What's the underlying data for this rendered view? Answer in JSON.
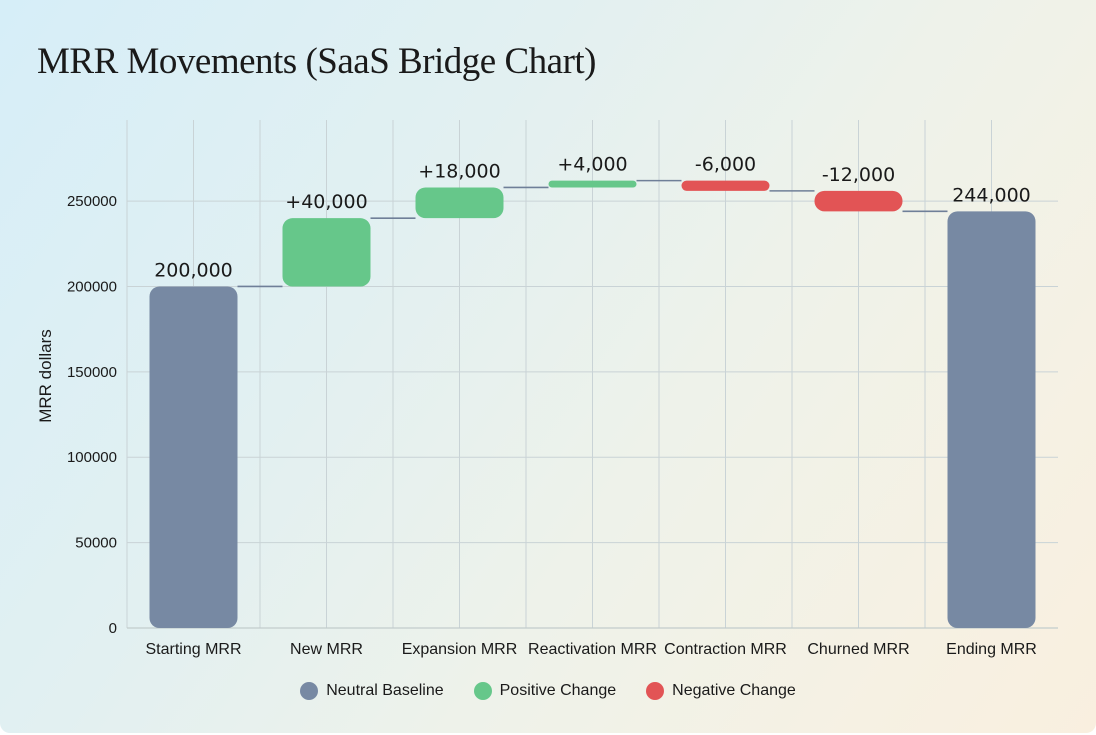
{
  "title": "MRR Movements (SaaS Bridge Chart)",
  "colors": {
    "neutral": "#7789a3",
    "positive": "#66c78a",
    "negative": "#e25455",
    "connector": "#6f7f98",
    "grid": "#c9d3d6"
  },
  "legend": [
    {
      "label": "Neutral Baseline",
      "color": "#7789a3"
    },
    {
      "label": "Positive Change",
      "color": "#66c78a"
    },
    {
      "label": "Negative Change",
      "color": "#e25455"
    }
  ],
  "chart_data": {
    "type": "bar",
    "subtype": "waterfall",
    "title": "MRR Movements (SaaS Bridge Chart)",
    "xlabel": "",
    "ylabel": "MRR dollars",
    "ylim": [
      0,
      297500
    ],
    "yticks": [
      0,
      50000,
      100000,
      150000,
      200000,
      250000
    ],
    "grid": true,
    "legend_position": "bottom",
    "categories": [
      "Starting MRR",
      "New MRR",
      "Expansion MRR",
      "Reactivation MRR",
      "Contraction MRR",
      "Churned MRR",
      "Ending MRR"
    ],
    "values": [
      200000,
      40000,
      18000,
      4000,
      -6000,
      -12000,
      244000
    ],
    "kinds": [
      "neutral",
      "positive",
      "positive",
      "positive",
      "negative",
      "negative",
      "neutral"
    ],
    "data_labels": [
      "200,000",
      "+40,000",
      "+18,000",
      "+4,000",
      "-6,000",
      "-12,000",
      "244,000"
    ],
    "bar_bottoms": [
      0,
      200000,
      240000,
      258000,
      256000,
      244000,
      0
    ],
    "bar_tops": [
      200000,
      240000,
      258000,
      262000,
      262000,
      256000,
      244000
    ],
    "series": [
      {
        "name": "Neutral Baseline",
        "values": [
          200000,
          null,
          null,
          null,
          null,
          null,
          244000
        ]
      },
      {
        "name": "Positive Change",
        "values": [
          null,
          40000,
          18000,
          4000,
          null,
          null,
          null
        ]
      },
      {
        "name": "Negative Change",
        "values": [
          null,
          null,
          null,
          null,
          -6000,
          -12000,
          null
        ]
      }
    ]
  }
}
